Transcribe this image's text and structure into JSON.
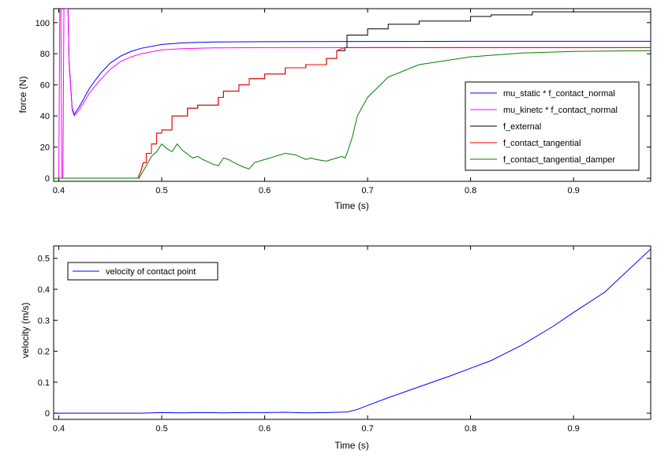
{
  "chart_data": [
    {
      "type": "line",
      "xlabel": "Time (s)",
      "ylabel": "force (N)",
      "xlim": [
        0.395,
        0.975
      ],
      "ylim": [
        -2,
        109
      ],
      "xticks": [
        0.4,
        0.5,
        0.6,
        0.7,
        0.8,
        0.9
      ],
      "xtick_labels": [
        "0.4",
        "0.5",
        "0.6",
        "0.7",
        "0.8",
        "0.9"
      ],
      "yticks": [
        0,
        20,
        40,
        60,
        80,
        100
      ],
      "ytick_labels": [
        "0",
        "20",
        "40",
        "60",
        "80",
        "100"
      ],
      "legend_position": "right",
      "series": [
        {
          "name": "mu_static * f_contact_normal",
          "color": "#0000ff",
          "x": [
            0.408,
            0.409,
            0.41,
            0.411,
            0.412,
            0.413,
            0.415,
            0.42,
            0.43,
            0.44,
            0.45,
            0.46,
            0.47,
            0.48,
            0.5,
            0.52,
            0.55,
            0.6,
            0.7,
            0.8,
            0.9,
            0.975
          ],
          "y": [
            109,
            109,
            75,
            65,
            55,
            45,
            41,
            46,
            58,
            67,
            74,
            78.5,
            81.5,
            83.5,
            86,
            87,
            87.6,
            87.8,
            87.9,
            88,
            88,
            88
          ]
        },
        {
          "name": "mu_kinetc * f_contact_normal",
          "color": "#ff00ff",
          "x": [
            0.399,
            0.4,
            0.401,
            0.402,
            0.403,
            0.404,
            0.405,
            0.406,
            0.407,
            0.408,
            0.409,
            0.41,
            0.411,
            0.412,
            0.413,
            0.415,
            0.42,
            0.43,
            0.44,
            0.45,
            0.46,
            0.47,
            0.48,
            0.5,
            0.52,
            0.55,
            0.6,
            0.7,
            0.8,
            0.9,
            0.975
          ],
          "y": [
            0,
            0,
            109,
            109,
            0,
            0,
            109,
            109,
            109,
            109,
            109,
            74,
            64,
            54,
            44,
            40,
            44,
            55,
            63,
            70,
            75,
            78,
            80,
            82.5,
            83.3,
            83.8,
            84,
            84,
            84,
            84,
            84
          ]
        },
        {
          "name": "f_external",
          "color": "#000000",
          "x": [
            0.395,
            0.477,
            0.48,
            0.482,
            0.485,
            0.485,
            0.49,
            0.49,
            0.495,
            0.495,
            0.5,
            0.5,
            0.51,
            0.51,
            0.525,
            0.525,
            0.535,
            0.535,
            0.555,
            0.555,
            0.56,
            0.56,
            0.575,
            0.575,
            0.585,
            0.585,
            0.6,
            0.6,
            0.62,
            0.62,
            0.64,
            0.64,
            0.66,
            0.66,
            0.67,
            0.67,
            0.678,
            0.678,
            0.68,
            0.68,
            0.7,
            0.7,
            0.72,
            0.72,
            0.75,
            0.75,
            0.8,
            0.8,
            0.82,
            0.82,
            0.86,
            0.86,
            0.975
          ],
          "y": [
            0,
            0,
            5,
            10,
            10,
            16,
            16,
            22,
            22,
            29,
            29,
            31,
            31,
            40,
            40,
            45,
            45,
            47,
            47,
            52,
            52,
            56,
            56,
            60,
            60,
            64,
            64,
            67,
            67,
            71,
            71,
            73,
            73,
            77,
            77,
            82,
            82,
            84,
            84,
            92,
            92,
            96,
            96,
            99,
            99,
            101,
            101,
            104,
            104,
            105,
            105,
            107,
            107
          ]
        },
        {
          "name": "f_contact_tangential",
          "color": "#ff0000",
          "x": [
            0.395,
            0.477,
            0.48,
            0.482,
            0.485,
            0.485,
            0.49,
            0.49,
            0.495,
            0.495,
            0.5,
            0.5,
            0.51,
            0.51,
            0.525,
            0.525,
            0.535,
            0.535,
            0.555,
            0.555,
            0.56,
            0.56,
            0.575,
            0.575,
            0.585,
            0.585,
            0.6,
            0.6,
            0.62,
            0.62,
            0.64,
            0.64,
            0.66,
            0.66,
            0.67,
            0.67,
            0.678,
            0.68,
            0.7,
            0.8,
            0.9,
            0.975
          ],
          "y": [
            0,
            0,
            5,
            10,
            10,
            16,
            16,
            22,
            22,
            29,
            29,
            31,
            31,
            40,
            40,
            45,
            45,
            47,
            47,
            52,
            52,
            56,
            56,
            60,
            60,
            64,
            64,
            67,
            67,
            71,
            71,
            73,
            73,
            77,
            77,
            82,
            84,
            84,
            84,
            84,
            84,
            84
          ]
        },
        {
          "name": "f_contact_tangential_damper",
          "color": "#008000",
          "x": [
            0.395,
            0.478,
            0.485,
            0.49,
            0.495,
            0.5,
            0.505,
            0.51,
            0.515,
            0.52,
            0.53,
            0.535,
            0.54,
            0.55,
            0.555,
            0.56,
            0.565,
            0.57,
            0.58,
            0.585,
            0.59,
            0.6,
            0.61,
            0.62,
            0.63,
            0.64,
            0.645,
            0.65,
            0.66,
            0.67,
            0.675,
            0.678,
            0.68,
            0.685,
            0.69,
            0.7,
            0.72,
            0.75,
            0.8,
            0.85,
            0.9,
            0.975
          ],
          "y": [
            0,
            0,
            8,
            14,
            17,
            22,
            19,
            17,
            22,
            18,
            13,
            14,
            12,
            9,
            8,
            13,
            12,
            10,
            7,
            6,
            10,
            12,
            14,
            16,
            15,
            12,
            13,
            12,
            11,
            13,
            14,
            13,
            16,
            26,
            40,
            52,
            65,
            73,
            78,
            80.5,
            81.5,
            82
          ]
        }
      ]
    },
    {
      "type": "line",
      "xlabel": "Time (s)",
      "ylabel": "velocity (m/s)",
      "xlim": [
        0.395,
        0.975
      ],
      "ylim": [
        -0.02,
        0.54
      ],
      "xticks": [
        0.4,
        0.5,
        0.6,
        0.7,
        0.8,
        0.9
      ],
      "xtick_labels": [
        "0.4",
        "0.5",
        "0.6",
        "0.7",
        "0.8",
        "0.9"
      ],
      "yticks": [
        0,
        0.1,
        0.2,
        0.3,
        0.4,
        0.5
      ],
      "ytick_labels": [
        "0",
        "0.1",
        "0.2",
        "0.3",
        "0.4",
        "0.5"
      ],
      "legend_position": "top-left",
      "series": [
        {
          "name": "velocity of contact point",
          "color": "#0000ff",
          "x": [
            0.395,
            0.48,
            0.5,
            0.52,
            0.54,
            0.56,
            0.58,
            0.6,
            0.62,
            0.64,
            0.66,
            0.68,
            0.69,
            0.7,
            0.72,
            0.75,
            0.78,
            0.8,
            0.82,
            0.85,
            0.88,
            0.9,
            0.93,
            0.975
          ],
          "y": [
            0,
            0,
            0.002,
            0.001,
            0.002,
            0.001,
            0.002,
            0.002,
            0.003,
            0.001,
            0.002,
            0.004,
            0.012,
            0.025,
            0.05,
            0.085,
            0.12,
            0.145,
            0.17,
            0.22,
            0.28,
            0.325,
            0.39,
            0.53
          ]
        }
      ]
    }
  ]
}
